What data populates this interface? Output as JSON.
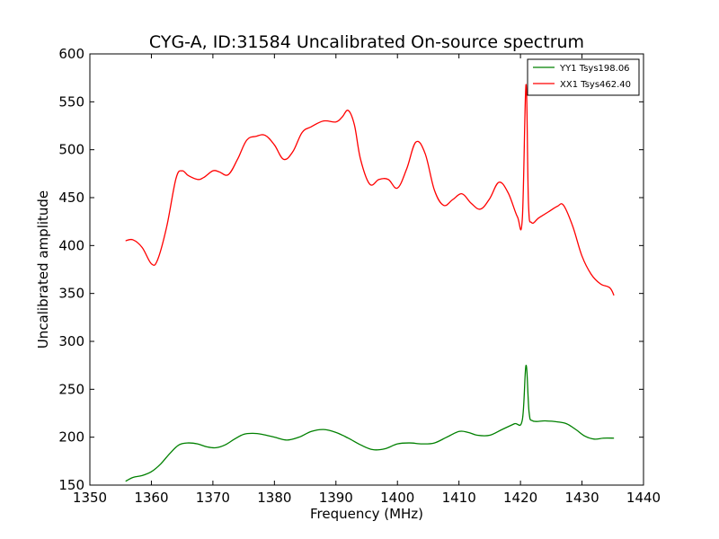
{
  "chart_data": {
    "type": "line",
    "title": "CYG-A, ID:31584 Uncalibrated On-source spectrum",
    "xlabel": "Frequency (MHz)",
    "ylabel": "Uncalibrated amplitude",
    "xlim": [
      1350,
      1440
    ],
    "ylim": [
      150,
      600
    ],
    "xticks": [
      1350,
      1360,
      1370,
      1380,
      1390,
      1400,
      1410,
      1420,
      1430,
      1440
    ],
    "yticks": [
      150,
      200,
      250,
      300,
      350,
      400,
      450,
      500,
      550,
      600
    ],
    "grid": false,
    "legend_position": "top-right",
    "series": [
      {
        "name": "YY1 Tsys198.06",
        "color": "#008000",
        "x": [
          1355.8,
          1357,
          1358.5,
          1360,
          1361.5,
          1363,
          1364.5,
          1366,
          1367.5,
          1369,
          1370.5,
          1372,
          1373.5,
          1375,
          1376.5,
          1378,
          1380,
          1382,
          1384,
          1386,
          1388,
          1390,
          1392,
          1394,
          1396,
          1398,
          1400,
          1402,
          1404,
          1406,
          1408,
          1410,
          1411.5,
          1413,
          1415,
          1417,
          1419,
          1420.3,
          1420.9,
          1421.4,
          1422,
          1424,
          1426,
          1427.5,
          1429,
          1430.5,
          1432,
          1433.5,
          1435.2
        ],
        "y": [
          154,
          158,
          160,
          164,
          172,
          183,
          192,
          194,
          193,
          190,
          189,
          192,
          198,
          203,
          204,
          203,
          200,
          197,
          200,
          206,
          208,
          205,
          199,
          192,
          187,
          188,
          193,
          194,
          193,
          194,
          200,
          206,
          205,
          202,
          202,
          208,
          214,
          218,
          275,
          226,
          217,
          217,
          216,
          214,
          208,
          201,
          198,
          199,
          199
        ]
      },
      {
        "name": "XX1 Tsys462.40",
        "color": "#ff0000",
        "x": [
          1355.8,
          1357,
          1358.5,
          1360,
          1361,
          1362.5,
          1364,
          1365,
          1366,
          1367.5,
          1368.5,
          1370,
          1371,
          1372.5,
          1374,
          1375.5,
          1377,
          1378.5,
          1380,
          1381.5,
          1383,
          1384.5,
          1386,
          1388,
          1390,
          1391,
          1392,
          1393,
          1394,
          1395.5,
          1397,
          1398.5,
          1400,
          1401.5,
          1403,
          1404.5,
          1406,
          1407.5,
          1409,
          1410.5,
          1412,
          1413.5,
          1415,
          1416.5,
          1418,
          1419.5,
          1420.3,
          1420.9,
          1421.3,
          1421.8,
          1423,
          1424.5,
          1426,
          1427,
          1428.5,
          1430,
          1431.5,
          1433,
          1434.5,
          1435.2
        ],
        "y": [
          405,
          406,
          398,
          381,
          385,
          420,
          470,
          478,
          473,
          469,
          471,
          478,
          477,
          474,
          490,
          510,
          514,
          515,
          505,
          490,
          498,
          518,
          524,
          530,
          529,
          534,
          541,
          526,
          490,
          464,
          469,
          469,
          460,
          480,
          508,
          496,
          458,
          442,
          448,
          454,
          444,
          438,
          449,
          466,
          455,
          430,
          428,
          568,
          444,
          424,
          429,
          435,
          441,
          442,
          420,
          389,
          370,
          360,
          356,
          348
        ]
      }
    ]
  }
}
